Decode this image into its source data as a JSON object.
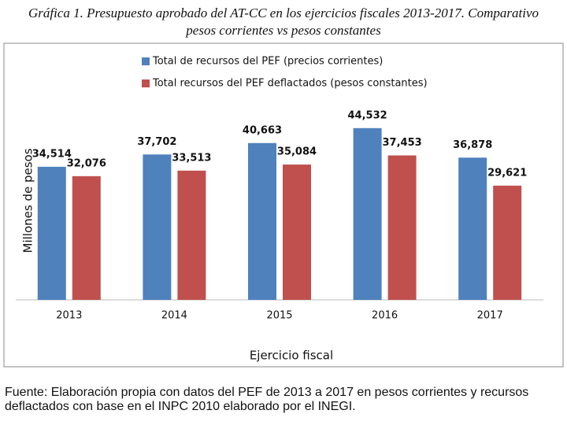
{
  "chart_data": {
    "type": "bar",
    "title": "Gráfica 1. Presupuesto aprobado del AT-CC en los ejercicios fiscales 2013-2017. Comparativo pesos corrientes vs pesos constantes",
    "y_label": "Millones de pesos",
    "x_label": "Ejercicio fiscal",
    "source": "Fuente: Elaboración propia con datos del PEF de 2013 a 2017 en pesos corrientes y recursos deflactados con base en el INPC 2010 elaborado por el INEGI.",
    "categories": [
      "2013",
      "2014",
      "2015",
      "2016",
      "2017"
    ],
    "series": [
      {
        "name": "Total de recursos del PEF (precios corrientes)",
        "color": "#4f81bd",
        "values": [
          34514,
          37702,
          40663,
          44532,
          36878
        ],
        "value_labels": [
          "34,514",
          "37,702",
          "40,663",
          "44,532",
          "36,878"
        ]
      },
      {
        "name": "Total recursos del PEF deflactados (pesos constantes)",
        "color": "#c0504d",
        "values": [
          32076,
          33513,
          35084,
          37453,
          29621
        ],
        "value_labels": [
          "32,076",
          "33,513",
          "35,084",
          "37,453",
          "29,621"
        ]
      }
    ],
    "ylim": [
      0,
      50000
    ],
    "legend": "top"
  }
}
